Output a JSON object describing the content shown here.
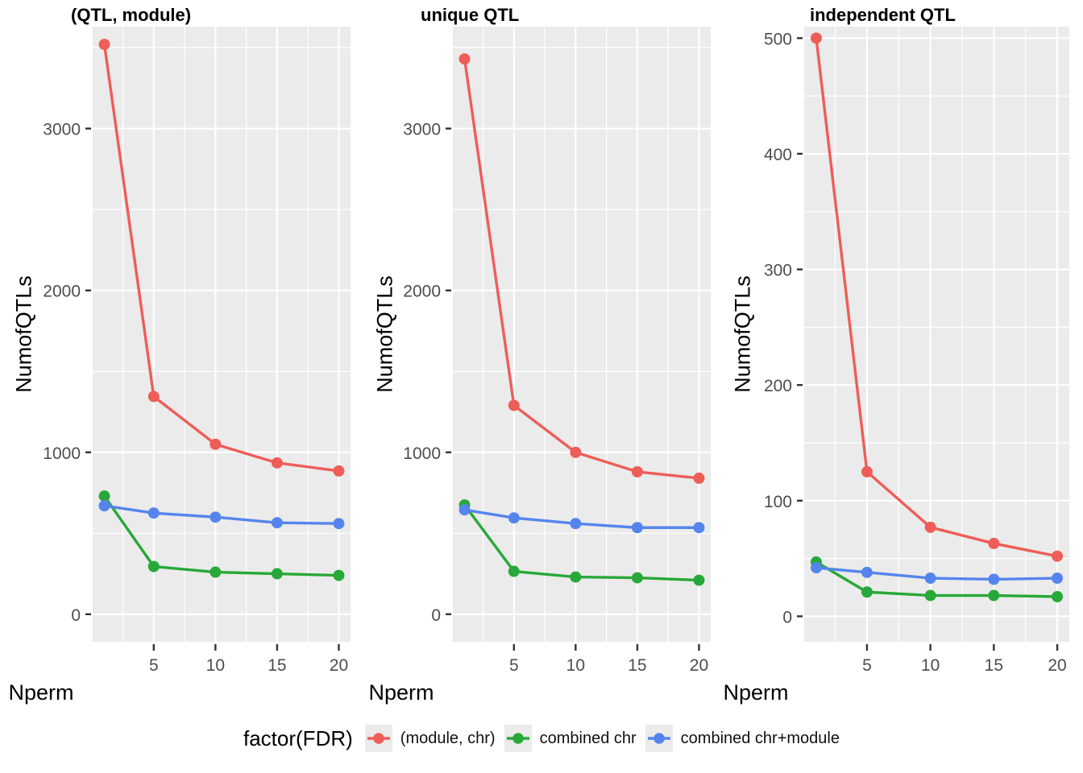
{
  "legend": {
    "title": "factor(FDR)",
    "items": [
      {
        "label": "(module, chr)",
        "color": "#EE5D58"
      },
      {
        "label": "combined chr",
        "color": "#28A838"
      },
      {
        "label": "combined chr+module",
        "color": "#5585EC"
      }
    ]
  },
  "palette": {
    "panel_background": "#EBEBEB",
    "gridline": "#FFFFFF",
    "tick_mark": "#333333",
    "tick_label": "#4D4D4D"
  },
  "chart_data": [
    {
      "type": "line",
      "title": "(QTL, module)",
      "xlabel": "Nperm",
      "ylabel": "NumofQTLs",
      "x": [
        1,
        5,
        10,
        15,
        20
      ],
      "xlim": [
        0.05,
        20.95
      ],
      "ylim": [
        -170,
        3630
      ],
      "xticks": [
        5,
        10,
        15,
        20
      ],
      "yticks": [
        0,
        1000,
        2000,
        3000
      ],
      "x_minor": [
        2.5,
        7.5,
        12.5,
        17.5
      ],
      "y_minor": [
        500,
        1500,
        2500,
        3500
      ],
      "grid": "on",
      "series": [
        {
          "name": "(module, chr)",
          "color": "#EE5D58",
          "values": [
            3520,
            1345,
            1050,
            935,
            885
          ]
        },
        {
          "name": "combined chr",
          "color": "#28A838",
          "values": [
            730,
            295,
            260,
            250,
            240
          ]
        },
        {
          "name": "combined chr+module",
          "color": "#5585EC",
          "values": [
            670,
            625,
            600,
            565,
            560
          ]
        }
      ]
    },
    {
      "type": "line",
      "title": "unique QTL",
      "xlabel": "Nperm",
      "ylabel": "NumofQTLs",
      "x": [
        1,
        5,
        10,
        15,
        20
      ],
      "xlim": [
        0.05,
        20.95
      ],
      "ylim": [
        -170,
        3630
      ],
      "xticks": [
        5,
        10,
        15,
        20
      ],
      "yticks": [
        0,
        1000,
        2000,
        3000
      ],
      "x_minor": [
        2.5,
        7.5,
        12.5,
        17.5
      ],
      "y_minor": [
        500,
        1500,
        2500,
        3500
      ],
      "grid": "on",
      "series": [
        {
          "name": "(module, chr)",
          "color": "#EE5D58",
          "values": [
            3430,
            1290,
            1000,
            880,
            840
          ]
        },
        {
          "name": "combined chr",
          "color": "#28A838",
          "values": [
            675,
            265,
            230,
            225,
            210
          ]
        },
        {
          "name": "combined chr+module",
          "color": "#5585EC",
          "values": [
            645,
            595,
            560,
            535,
            535
          ]
        }
      ]
    },
    {
      "type": "line",
      "title": "independent QTL",
      "xlabel": "Nperm",
      "ylabel": "NumofQTLs",
      "x": [
        1,
        5,
        10,
        15,
        20
      ],
      "xlim": [
        0.05,
        20.95
      ],
      "ylim": [
        -22,
        510
      ],
      "xticks": [
        5,
        10,
        15,
        20
      ],
      "yticks": [
        0,
        100,
        200,
        300,
        400,
        500
      ],
      "x_minor": [
        2.5,
        7.5,
        12.5,
        17.5
      ],
      "y_minor": [
        50,
        150,
        250,
        350,
        450
      ],
      "grid": "on",
      "series": [
        {
          "name": "(module, chr)",
          "color": "#EE5D58",
          "values": [
            500,
            125,
            77,
            63,
            52
          ]
        },
        {
          "name": "combined chr",
          "color": "#28A838",
          "values": [
            47,
            21,
            18,
            18,
            17
          ]
        },
        {
          "name": "combined chr+module",
          "color": "#5585EC",
          "values": [
            42,
            38,
            33,
            32,
            33
          ]
        }
      ]
    }
  ]
}
